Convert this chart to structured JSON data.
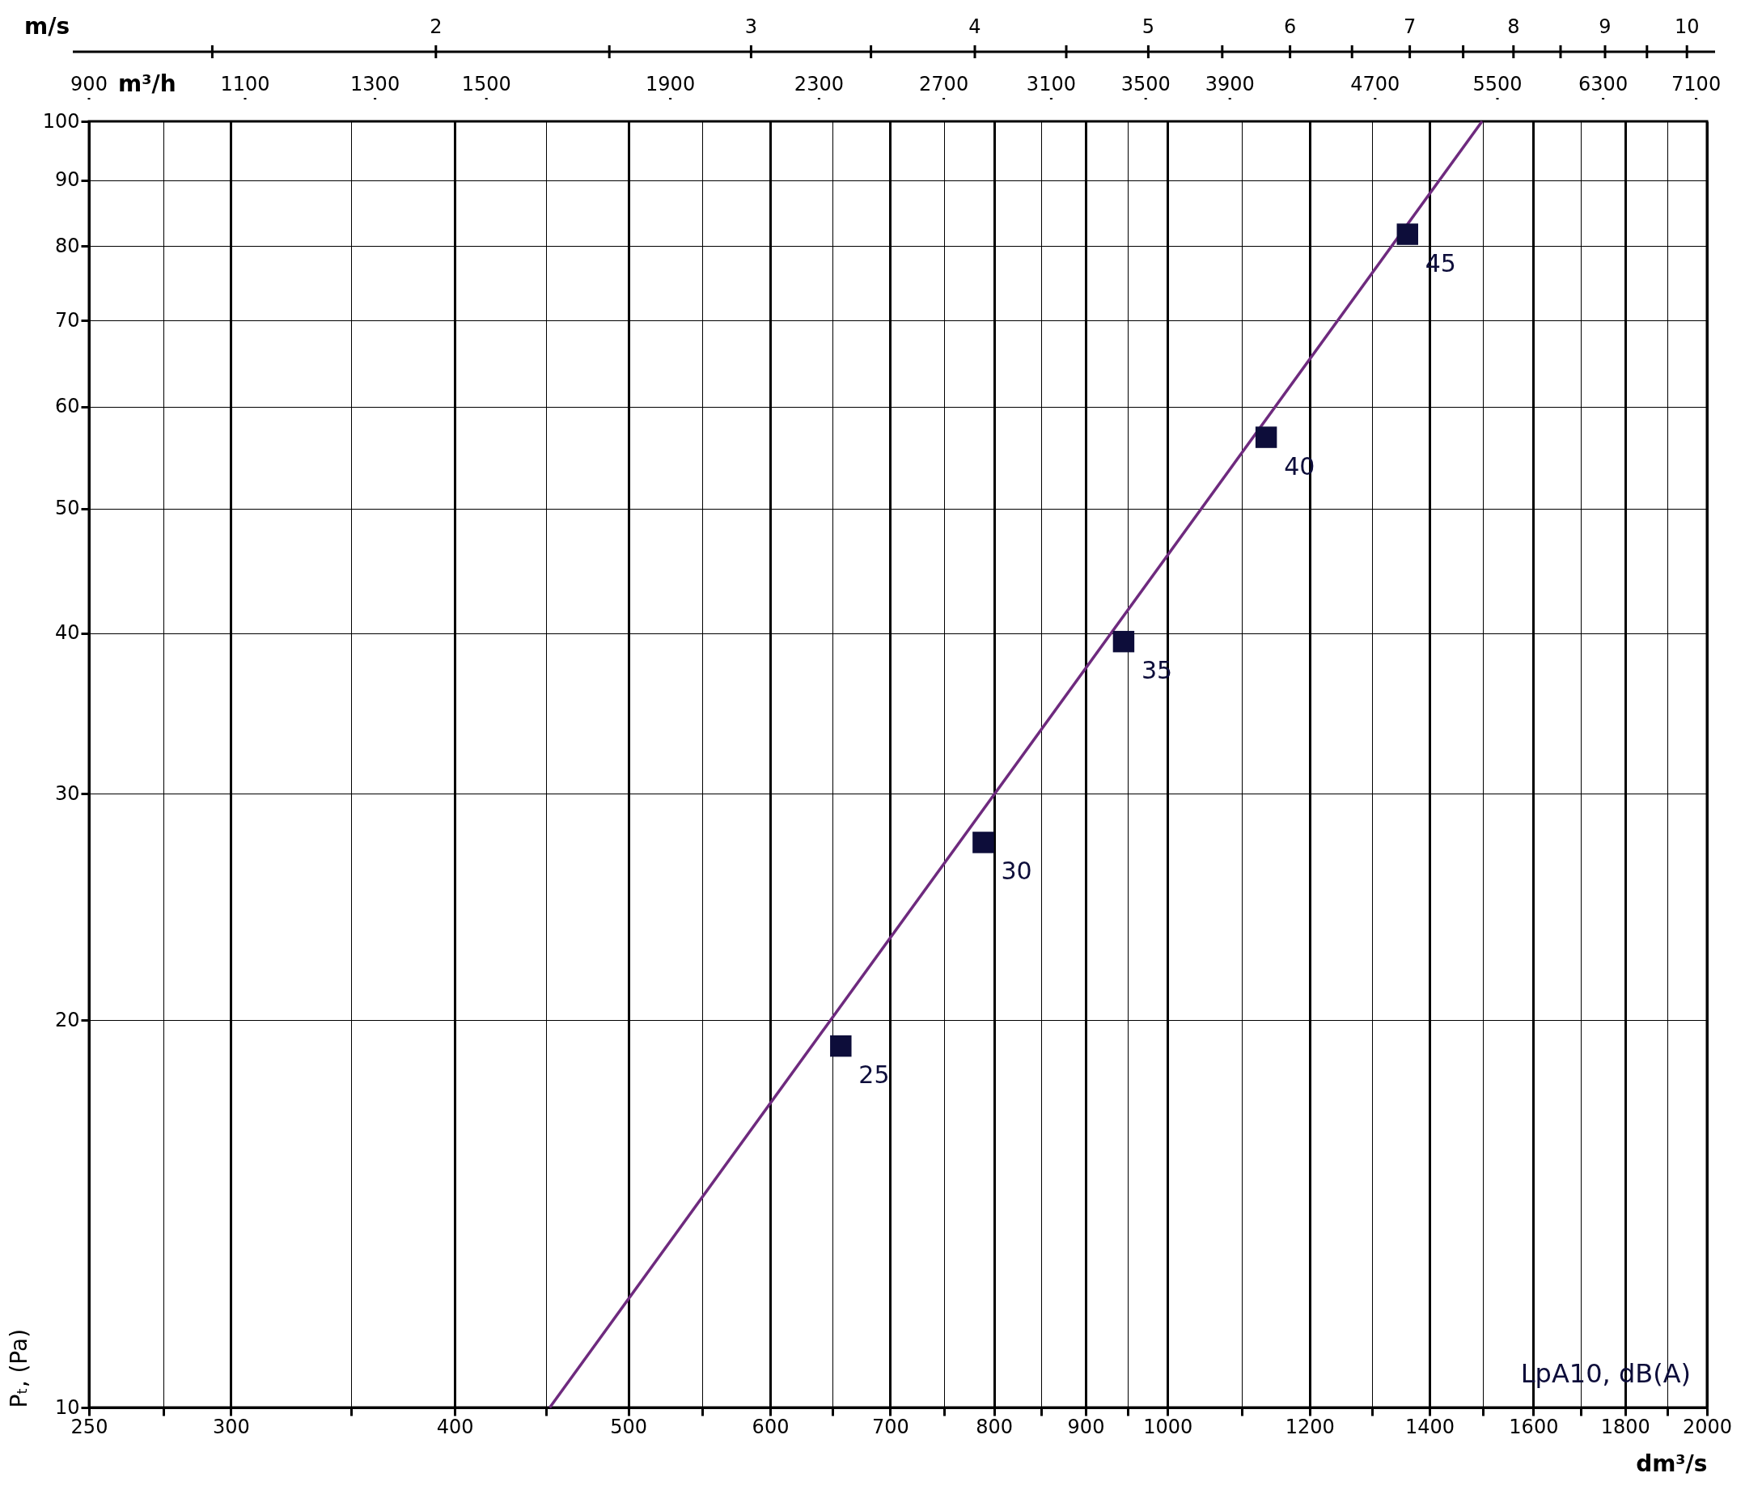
{
  "chart_data": [
    {
      "type": "other",
      "annotations": [
        "m/s",
        "2",
        "3",
        "4",
        "5",
        "6",
        "7",
        "8",
        "9",
        "10"
      ]
    },
    {
      "type": "other",
      "annotations": [
        "m³/h",
        "900",
        "1100",
        "1300",
        "1500",
        "1900",
        "2300",
        "2700",
        "3100",
        "3500",
        "3900",
        "4700",
        "5500",
        "6300",
        "7100"
      ]
    },
    {
      "type": "line",
      "xlabel": "dm³/s",
      "ylabel": "Pₜ, (Pa)",
      "xlim": [
        250,
        2000
      ],
      "xticks": [
        250,
        {
          "value": 275,
          "label": null
        },
        300,
        {
          "value": 350,
          "label": null
        },
        400,
        {
          "value": 450,
          "label": null
        },
        500,
        {
          "value": 550,
          "label": null
        },
        600,
        {
          "value": 650,
          "label": null
        },
        700,
        {
          "value": 750,
          "label": null
        },
        800,
        {
          "value": 850,
          "label": null
        },
        900,
        {
          "value": 950,
          "label": null
        },
        1000,
        {
          "value": 1100,
          "label": null
        },
        1200,
        {
          "value": 1300,
          "label": null
        },
        1400,
        {
          "value": 1500,
          "label": null
        },
        1600,
        {
          "value": 1700,
          "label": null
        },
        1800,
        {
          "value": 1900,
          "label": null
        },
        2000
      ],
      "ylim": [
        10,
        100
      ],
      "yticks": [
        10,
        20,
        30,
        40,
        50,
        60,
        70,
        80,
        90,
        100
      ],
      "log": "xy",
      "grid": true,
      "series": [
        {
          "type": "line",
          "color": "#6e2a7e",
          "x": [
            452,
            1498
          ],
          "values": [
            10,
            100
          ]
        },
        {
          "type": "scatter",
          "marker": "square",
          "color": "#0d0d3a",
          "x": [
            657,
            789,
            945,
            1135,
            1361
          ],
          "values": [
            19.1,
            27.5,
            39.4,
            56.8,
            81.7
          ]
        }
      ],
      "annotations": [
        {
          "text": "25",
          "x": 657,
          "y": 19.1
        },
        {
          "text": "30",
          "x": 789,
          "y": 27.5
        },
        {
          "text": "35",
          "x": 945,
          "y": 39.4
        },
        {
          "text": "40",
          "x": 1135,
          "y": 56.8
        },
        {
          "text": "45",
          "x": 1361,
          "y": 81.7
        },
        "LpA10, dB(A)"
      ]
    }
  ]
}
